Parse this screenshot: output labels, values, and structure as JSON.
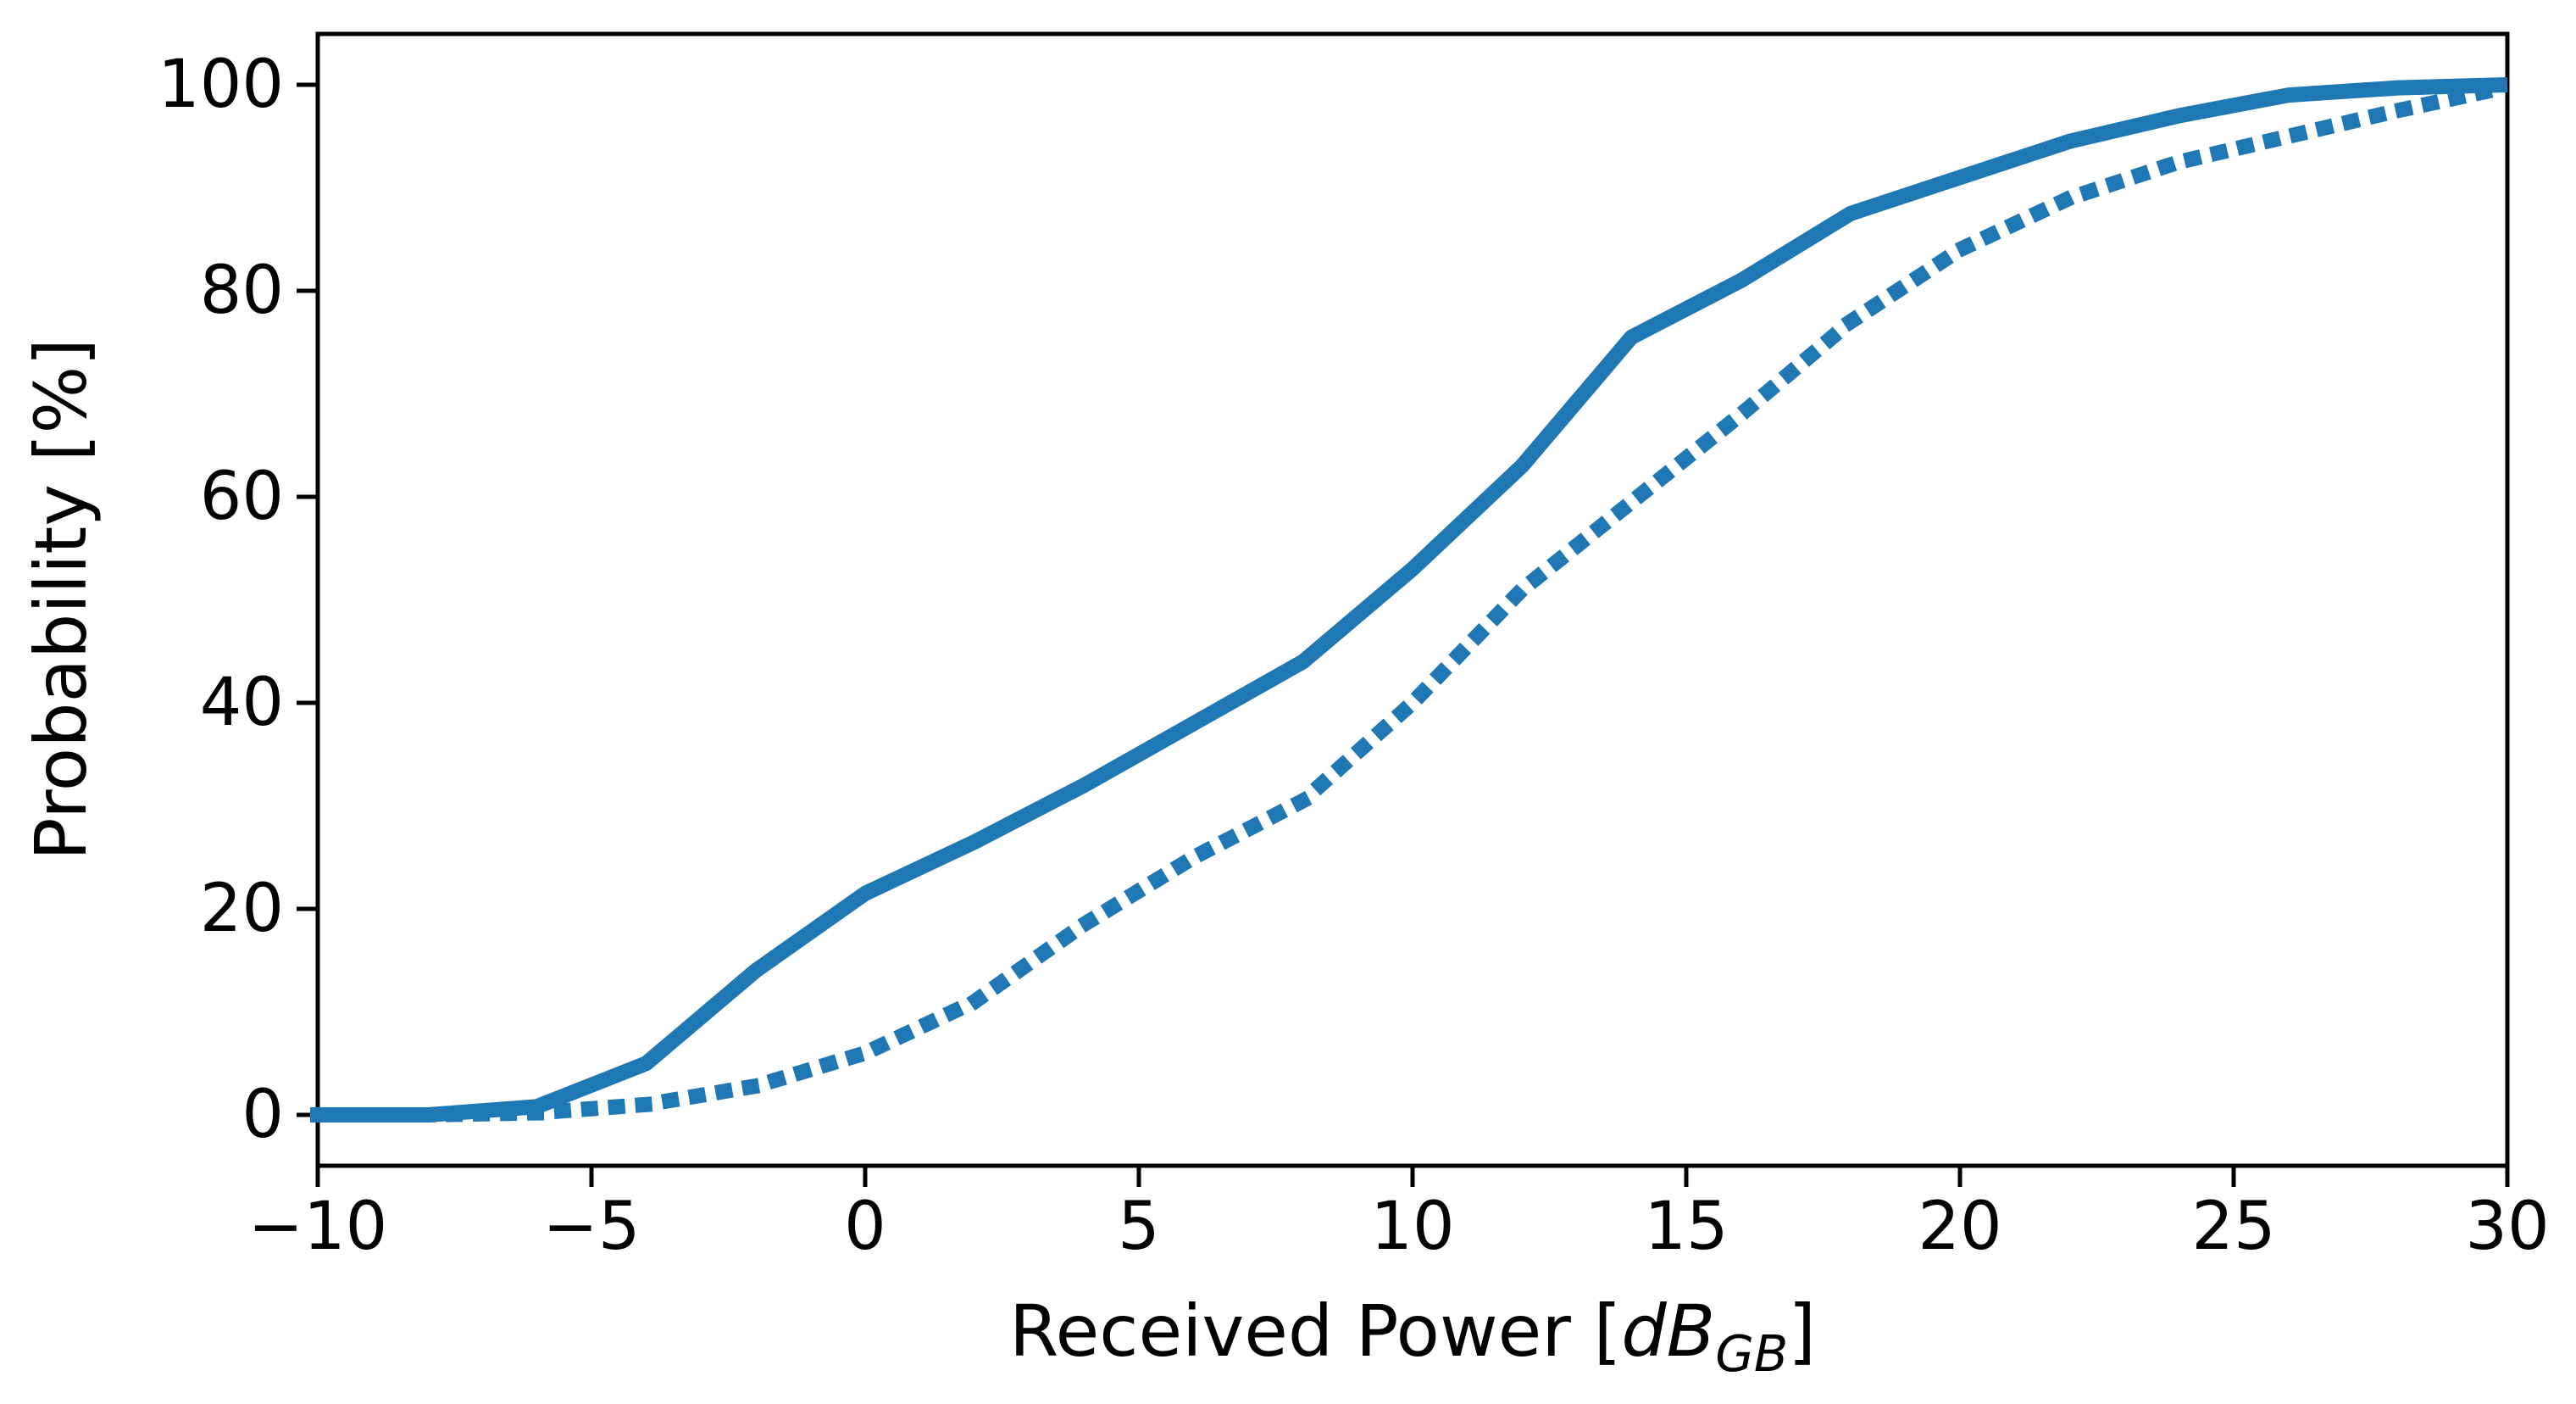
{
  "figure": {
    "background": "#ffffff",
    "axes_color": "#000000"
  },
  "chart_data": {
    "type": "line",
    "title": "",
    "xlabel_parts": {
      "prefix": "Received Power [",
      "math": "dB",
      "sub": "GB",
      "suffix": "]"
    },
    "ylabel": "Probability [%]",
    "xlim": [
      -10,
      30
    ],
    "ylim": [
      0,
      100
    ],
    "grid": false,
    "legend": "none",
    "line_color": "#1f77b4",
    "x_ticks": {
      "values": [
        -10,
        -5,
        0,
        5,
        10,
        15,
        20,
        25,
        30
      ],
      "labels": [
        "−10",
        "−5",
        "0",
        "5",
        "10",
        "15",
        "20",
        "25",
        "30"
      ]
    },
    "y_ticks": {
      "values": [
        0,
        20,
        40,
        60,
        80,
        100
      ],
      "labels": [
        "0",
        "20",
        "40",
        "60",
        "80",
        "100"
      ]
    },
    "series": [
      {
        "name": "cdf-solid",
        "style": "solid",
        "x": [
          -10,
          -8,
          -6,
          -4,
          -2,
          0,
          2,
          4,
          6,
          8,
          10,
          12,
          14,
          16,
          18,
          20,
          22,
          24,
          26,
          28,
          30
        ],
        "y": [
          0,
          0,
          0.8,
          5,
          14,
          21.5,
          26.5,
          32,
          38,
          44,
          53,
          63,
          75.5,
          81,
          87.5,
          91,
          94.5,
          97,
          99,
          99.7,
          100
        ]
      },
      {
        "name": "cdf-dotted",
        "style": "dotted",
        "x": [
          -10,
          -8,
          -6,
          -4,
          -2,
          0,
          2,
          4,
          6,
          8,
          10,
          12,
          14,
          16,
          18,
          20,
          22,
          24,
          26,
          28,
          30
        ],
        "y": [
          0,
          0,
          0.2,
          1,
          2.8,
          6,
          11,
          18.5,
          25,
          30.5,
          40,
          51,
          59.5,
          68,
          77,
          84,
          89,
          92.5,
          95,
          97.5,
          99.8
        ]
      }
    ]
  }
}
